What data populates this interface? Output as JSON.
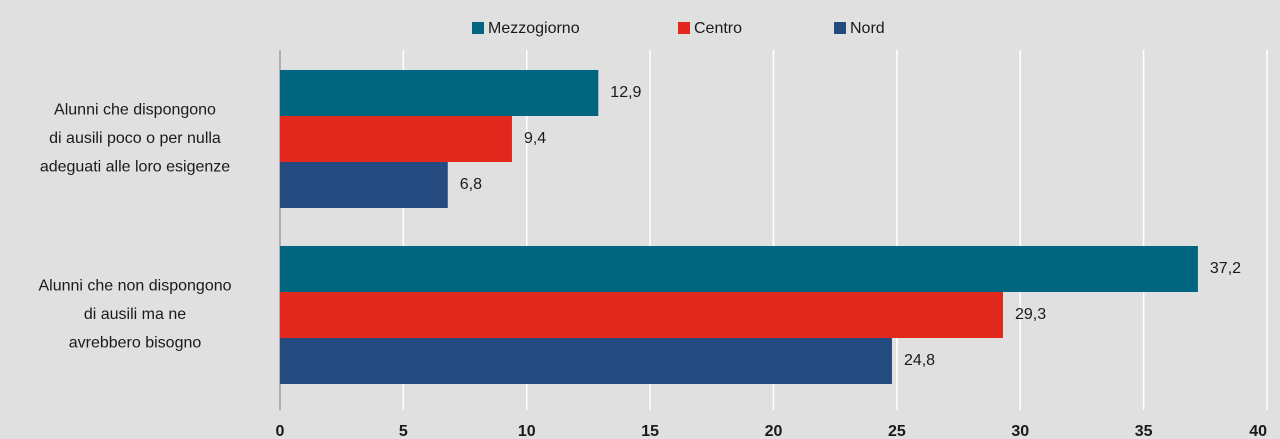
{
  "chart_data": {
    "type": "hbar",
    "categories": [
      [
        "Alunni che dispongono",
        "di ausili poco o per nulla",
        "adeguati alle loro esigenze"
      ],
      [
        "Alunni che non dispongono",
        "di ausili ma ne",
        "avrebbero bisogno"
      ]
    ],
    "series": [
      {
        "name": "Mezzogiorno",
        "color": "#00657f",
        "values": [
          12.9,
          37.2
        ],
        "value_labels": [
          "12,9",
          "37,2"
        ]
      },
      {
        "name": "Centro",
        "color": "#e2271d",
        "values": [
          9.4,
          29.3
        ],
        "value_labels": [
          "9,4",
          "29,3"
        ]
      },
      {
        "name": "Nord",
        "color": "#254a7f",
        "values": [
          6.8,
          24.8
        ],
        "value_labels": [
          "6,8",
          "24,8"
        ]
      }
    ],
    "xlim": [
      0,
      40
    ],
    "xticks": [
      0,
      5,
      10,
      15,
      20,
      25,
      30,
      35,
      40
    ],
    "grid": true,
    "legend": "top"
  }
}
